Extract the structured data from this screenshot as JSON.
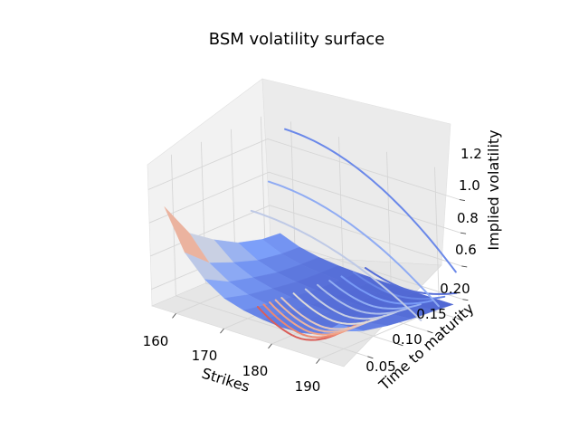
{
  "chart_data": {
    "type": "surface3d",
    "title": "BSM volatility surface",
    "xlabel": "Strikes",
    "ylabel": "Time to maturity",
    "zlabel": "Implied volatility",
    "xlim": [
      155,
      195
    ],
    "ylim": [
      0.01,
      0.21
    ],
    "zlim": [
      0.5,
      1.35
    ],
    "xticks": [
      "160",
      "170",
      "180",
      "190"
    ],
    "yticks": [
      "0.05",
      "0.10",
      "0.15",
      "0.20"
    ],
    "zticks": [
      "0.6",
      "0.8",
      "1.0",
      "1.2"
    ],
    "colormap": "coolwarm",
    "grid": true,
    "strikes": [
      157,
      161,
      165,
      169,
      173,
      177,
      181,
      185,
      189,
      193
    ],
    "maturities": [
      0.02,
      0.06,
      0.1,
      0.14,
      0.18,
      0.21
    ],
    "implied_vol": [
      [
        0.6,
        0.57,
        0.56,
        0.55,
        0.55,
        0.55
      ],
      [
        0.59,
        0.57,
        0.56,
        0.55,
        0.55,
        0.55
      ],
      [
        0.59,
        0.57,
        0.56,
        0.55,
        0.55,
        0.55
      ],
      [
        0.58,
        0.57,
        0.56,
        0.55,
        0.55,
        0.55
      ],
      [
        0.58,
        0.57,
        0.56,
        0.55,
        0.55,
        0.55
      ],
      [
        0.58,
        0.57,
        0.56,
        0.55,
        0.55,
        0.55
      ],
      [
        0.58,
        0.57,
        0.56,
        0.55,
        0.55,
        0.55
      ],
      [
        0.59,
        0.57,
        0.56,
        0.55,
        0.55,
        0.55
      ],
      [
        0.62,
        0.58,
        0.57,
        0.56,
        0.55,
        0.55
      ],
      [
        0.72,
        0.62,
        0.59,
        0.57,
        0.56,
        0.55
      ]
    ],
    "ridge_vol_at_lowest_strike": [
      1.1,
      0.88,
      0.78,
      0.7,
      0.66,
      0.65
    ]
  }
}
